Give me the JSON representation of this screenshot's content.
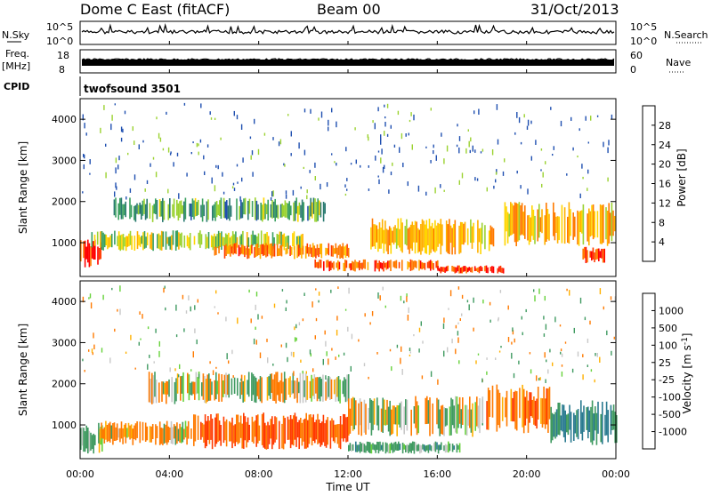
{
  "header": {
    "station": "Dome C East (fitACF)",
    "beam": "Beam 00",
    "date": "31/Oct/2013"
  },
  "strips": {
    "nsky_label": "N.Sky",
    "nsearch_label": "N.Search",
    "nsky_ticks": [
      "10^5",
      "10^0"
    ],
    "nsearch_ticks": [
      "10^5",
      "10^0"
    ],
    "freq_label": "Freq.",
    "freq_unit": "[MHz]",
    "freq_ticks": [
      "18",
      "8"
    ],
    "nave_label": "Nave",
    "nave_ticks": [
      "60",
      "0"
    ],
    "cpid_label": "CPID",
    "cpid_value": "twofsound 3501"
  },
  "x_axis": {
    "label": "Time UT",
    "ticks": [
      "00:00",
      "04:00",
      "08:00",
      "12:00",
      "16:00",
      "20:00",
      "00:00"
    ]
  },
  "power_colorbar": {
    "label": "Power [dB]",
    "ticks": [
      "28",
      "24",
      "20",
      "16",
      "12",
      "8",
      "4"
    ],
    "colors": [
      "#ff0000",
      "#ff3a00",
      "#ff7a00",
      "#ffb000",
      "#ffd500",
      "#9bd230",
      "#3aa060",
      "#2a7a70",
      "#1f4fb0",
      "#0000ff"
    ]
  },
  "velocity_colorbar": {
    "label": "Velocity [m s^-1]",
    "ticks": [
      "1000",
      "500",
      "100",
      "25",
      "-25",
      "-100",
      "-500",
      "-1000"
    ],
    "colors": [
      "#1f3fc0",
      "#2a7a90",
      "#3f9a60",
      "#66d23a",
      "#c8c8c8",
      "#ffb000",
      "#ff7a00",
      "#ff3a00",
      "#ff0000"
    ]
  },
  "chart_data": [
    {
      "type": "line",
      "title": "Dome C East (fitACF)",
      "series": [
        {
          "name": "N.Sky",
          "values": []
        },
        {
          "name": "N.Search",
          "values": []
        }
      ],
      "xlim": [
        "00:00",
        "24:00"
      ],
      "ylim": [
        1,
        100000
      ],
      "log_y": true
    },
    {
      "type": "line",
      "series": [
        {
          "name": "Freq.",
          "values": [],
          "ylim": [
            8,
            18
          ]
        },
        {
          "name": "Nave",
          "values": [],
          "ylim": [
            0,
            60
          ]
        }
      ],
      "xlim": [
        "00:00",
        "24:00"
      ]
    },
    {
      "type": "heatmap",
      "xlabel": "Time UT",
      "ylabel": "Slant Range [km]",
      "xlim": [
        "00:00",
        "24:00"
      ],
      "ylim": [
        180,
        4500
      ],
      "yticks": [
        1000,
        2000,
        3000,
        4000
      ],
      "colorbar_label": "Power [dB]",
      "colorbar_ticks": [
        4,
        8,
        12,
        16,
        20,
        24,
        28
      ],
      "bands": [
        {
          "t_start": 0.0,
          "t_end": 1.0,
          "range_lo": 400,
          "range_hi": 1100,
          "power_db": 28
        },
        {
          "t_start": 0.5,
          "t_end": 10.0,
          "range_lo": 800,
          "range_hi": 1300,
          "power_db": 16
        },
        {
          "t_start": 1.5,
          "t_end": 11.0,
          "range_lo": 1500,
          "range_hi": 2100,
          "power_db": 12
        },
        {
          "t_start": 6.0,
          "t_end": 12.0,
          "range_lo": 600,
          "range_hi": 1000,
          "power_db": 24
        },
        {
          "t_start": 10.5,
          "t_end": 16.0,
          "range_lo": 300,
          "range_hi": 600,
          "power_db": 26
        },
        {
          "t_start": 13.0,
          "t_end": 18.5,
          "range_lo": 700,
          "range_hi": 1600,
          "power_db": 20
        },
        {
          "t_start": 16.0,
          "t_end": 19.0,
          "range_lo": 250,
          "range_hi": 450,
          "power_db": 28
        },
        {
          "t_start": 19.0,
          "t_end": 24.0,
          "range_lo": 900,
          "range_hi": 2000,
          "power_db": 20
        },
        {
          "t_start": 22.5,
          "t_end": 23.5,
          "range_lo": 500,
          "range_hi": 900,
          "power_db": 28
        }
      ]
    },
    {
      "type": "heatmap",
      "xlabel": "Time UT",
      "ylabel": "Slant Range [km]",
      "xlim": [
        "00:00",
        "24:00"
      ],
      "ylim": [
        180,
        4500
      ],
      "yticks": [
        1000,
        2000,
        3000,
        4000
      ],
      "colorbar_label": "Velocity [m s^-1]",
      "colorbar_ticks": [
        -1000,
        -500,
        -100,
        -25,
        25,
        100,
        500,
        1000
      ],
      "bands": [
        {
          "t_start": 0.0,
          "t_end": 1.0,
          "range_lo": 300,
          "range_hi": 1000,
          "velocity": 100
        },
        {
          "t_start": 0.8,
          "t_end": 5.0,
          "range_lo": 500,
          "range_hi": 1100,
          "velocity": -100
        },
        {
          "t_start": 3.0,
          "t_end": 12.0,
          "range_lo": 1500,
          "range_hi": 2300,
          "velocity": 0
        },
        {
          "t_start": 5.0,
          "t_end": 12.0,
          "range_lo": 400,
          "range_hi": 1300,
          "velocity": -300
        },
        {
          "t_start": 12.0,
          "t_end": 18.0,
          "range_lo": 700,
          "range_hi": 1700,
          "velocity": 0
        },
        {
          "t_start": 12.0,
          "t_end": 17.0,
          "range_lo": 300,
          "range_hi": 600,
          "velocity": 200
        },
        {
          "t_start": 18.0,
          "t_end": 21.0,
          "range_lo": 800,
          "range_hi": 2000,
          "velocity": -200
        },
        {
          "t_start": 21.0,
          "t_end": 24.0,
          "range_lo": 500,
          "range_hi": 1600,
          "velocity": 300
        }
      ]
    }
  ]
}
